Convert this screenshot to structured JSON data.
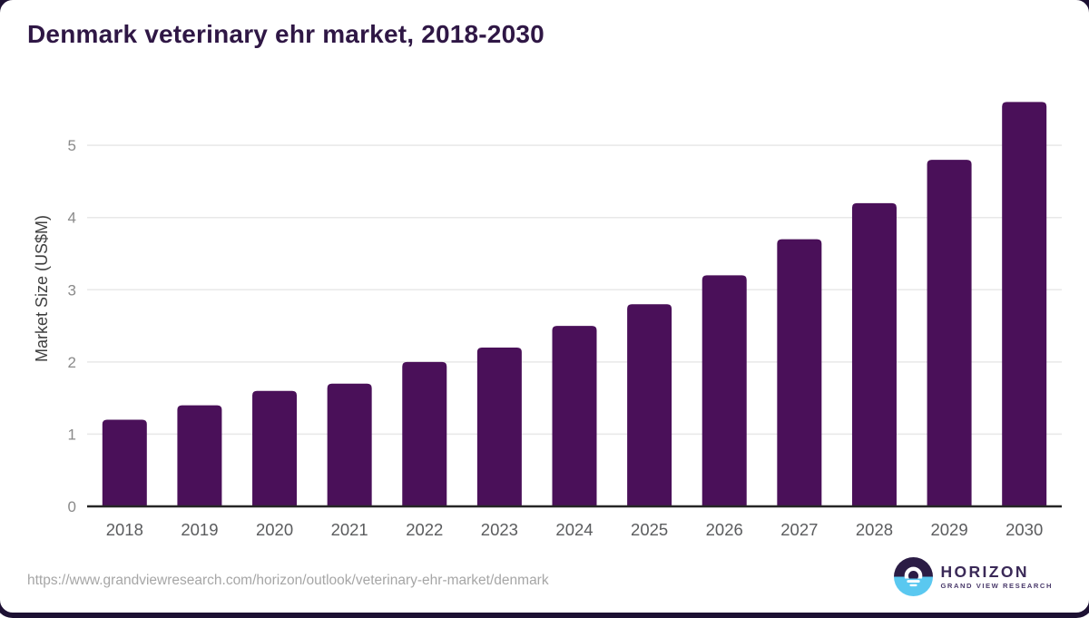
{
  "title": {
    "text": "Denmark veterinary ehr market, 2018-2030",
    "color": "#2f1745"
  },
  "chart_data": {
    "type": "bar",
    "categories": [
      "2018",
      "2019",
      "2020",
      "2021",
      "2022",
      "2023",
      "2024",
      "2025",
      "2026",
      "2027",
      "2028",
      "2029",
      "2030"
    ],
    "values": [
      1.2,
      1.4,
      1.6,
      1.7,
      2.0,
      2.2,
      2.5,
      2.8,
      3.2,
      3.7,
      4.2,
      4.8,
      5.6
    ],
    "title": "Denmark veterinary ehr market, 2018-2030",
    "xlabel": "",
    "ylabel": "Market Size (US$M)",
    "ylim": [
      0,
      5.75
    ],
    "yticks": [
      0,
      1,
      2,
      3,
      4,
      5
    ],
    "grid": true,
    "legend": "none",
    "bar_color": "#4a1059"
  },
  "axes": {
    "grid_color": "#e8e8e8",
    "axis_line_color": "#262626",
    "ytick_color": "#8a8a8a",
    "xtick_color": "#5b5c5e",
    "ylabel_color": "#3f3f3f"
  },
  "footer": {
    "url": "https://www.grandviewresearch.com/horizon/outlook/veterinary-ehr-market/denmark",
    "color": "#a6a6a6"
  },
  "logo": {
    "brand": "HORIZON",
    "subtitle": "GRAND VIEW RESEARCH",
    "brand_color": "#3a2957",
    "subtitle_color": "#4a3a6b",
    "icon_dark": "#2b1c45",
    "icon_blue": "#5ac8f0"
  },
  "frame": {
    "border_color": "#1d1133"
  }
}
